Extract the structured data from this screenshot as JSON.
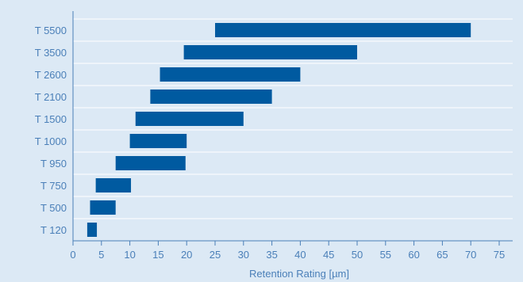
{
  "colors": {
    "background": "#dce9f5",
    "bar": "#005aa0",
    "axis": "#4a7fb8",
    "grid": "#ffffff",
    "text": "#4a7fb8"
  },
  "chart_data": {
    "type": "bar",
    "orientation": "horizontal",
    "title": "",
    "xlabel": "Retention Rating [µm]",
    "ylabel": "",
    "xlim": [
      0,
      75
    ],
    "xticks": [
      0,
      5,
      10,
      15,
      20,
      25,
      30,
      35,
      40,
      45,
      50,
      55,
      60,
      65,
      70,
      75
    ],
    "grid": "horizontal lines between categories",
    "categories": [
      "T 5500",
      "T 3500",
      "T 2600",
      "T 2100",
      "T 1500",
      "T 1000",
      "T 950",
      "T 750",
      "T 500",
      "T 120"
    ],
    "ranges": [
      [
        25,
        70
      ],
      [
        19.5,
        50
      ],
      [
        15.3,
        40
      ],
      [
        13.6,
        35
      ],
      [
        11,
        30
      ],
      [
        10,
        20
      ],
      [
        7.5,
        19.8
      ],
      [
        4,
        10.2
      ],
      [
        3,
        7.5
      ],
      [
        2.5,
        4.2
      ]
    ]
  }
}
